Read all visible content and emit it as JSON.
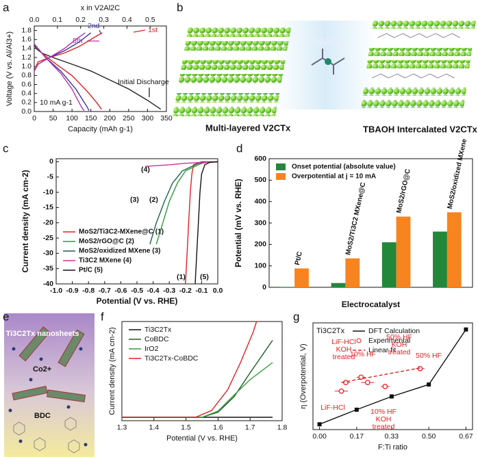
{
  "panels": {
    "labels": [
      "a",
      "b",
      "c",
      "d",
      "e",
      "f",
      "g"
    ]
  },
  "illustrations": {
    "b": {
      "center": "TBAOH",
      "left": "Multi-layered V2CTx",
      "right": "TBAOH Intercalated V2CTx"
    },
    "e": {
      "top": "Ti3C2Tx nanosheets",
      "ion": "Co2+",
      "bottom": "BDC"
    }
  },
  "chart_data": [
    {
      "type": "line",
      "x2label": "x in V2Al2C",
      "xlabel": "Capacity (mAh g-1)",
      "ylabel": "Voltage (V vs. Al/Al3+)",
      "xlim": [
        0,
        350
      ],
      "xticks": [
        0,
        50,
        100,
        150,
        200,
        250,
        300,
        350
      ],
      "x2lim": [
        0,
        0.57
      ],
      "x2ticks": [
        {
          "value": 0,
          "label": "0.0"
        },
        0.1,
        0.2,
        0.3,
        0.4,
        0.5
      ],
      "ylim": [
        0,
        1.9
      ],
      "yticks": [
        {
          "value": 0,
          "label": "0.0"
        },
        0.2,
        0.4,
        0.6,
        0.8,
        {
          "value": 1,
          "label": "1.0"
        },
        1.2,
        1.4,
        1.6,
        1.8
      ],
      "series": [
        {
          "color": "#222222",
          "x": [
            0,
            5,
            20,
            50,
            100,
            150,
            200,
            250,
            300,
            335
          ],
          "values": [
            1.5,
            1.4,
            1.3,
            1.2,
            1.05,
            0.9,
            0.7,
            0.5,
            0.25,
            0.05
          ]
        },
        {
          "color": "#e02020",
          "x": [
            0,
            20,
            50,
            100,
            140,
            165,
            178
          ],
          "values": [
            1.5,
            1.3,
            1.1,
            0.8,
            0.45,
            0.2,
            0.05
          ]
        },
        {
          "color": "#e02020",
          "x": [
            0,
            10,
            40,
            80,
            120,
            160,
            180
          ],
          "values": [
            0.9,
            1.1,
            1.2,
            1.3,
            1.45,
            1.65,
            1.75
          ]
        },
        {
          "color": "#3a3a9a",
          "x": [
            0,
            30,
            70,
            110,
            140,
            145
          ],
          "values": [
            1.5,
            1.2,
            0.9,
            0.5,
            0.1,
            0.02
          ]
        },
        {
          "color": "#3a3a9a",
          "x": [
            0,
            10,
            40,
            80,
            120,
            150
          ],
          "values": [
            0.9,
            1.05,
            1.2,
            1.35,
            1.55,
            1.75
          ]
        },
        {
          "color": "#b030b0",
          "x": [
            0,
            30,
            70,
            100,
            125,
            132
          ],
          "values": [
            1.5,
            1.2,
            0.85,
            0.5,
            0.1,
            0.02
          ]
        },
        {
          "color": "#b030b0",
          "x": [
            0,
            10,
            40,
            80,
            110,
            135
          ],
          "values": [
            0.9,
            1.05,
            1.2,
            1.4,
            1.6,
            1.75
          ]
        }
      ],
      "annotations": [
        [
          "1st"
        ],
        [
          "2nd"
        ],
        [
          "5th"
        ],
        [
          "Initial Discharge"
        ],
        [
          "10 mA g-1"
        ]
      ]
    },
    {
      "type": "line",
      "xlabel": "Potential (V vs. RHE)",
      "ylabel": "Current density (mA cm-2)",
      "xlim": [
        -1.0,
        0.0
      ],
      "xticks": [
        {
          "value": -1,
          "label": "-1.0"
        },
        -0.9,
        -0.8,
        -0.7,
        -0.6,
        -0.5,
        -0.4,
        -0.3,
        -0.2,
        -0.1,
        {
          "value": 0,
          "label": "0.0"
        }
      ],
      "ylim": [
        -40,
        1
      ],
      "yticks": [
        0,
        -5,
        -10,
        -15,
        -20,
        -25,
        -30,
        -35,
        -40
      ],
      "legend": "lower left",
      "series": [
        {
          "name": "MoS2/Ti3C2-MXene@C (1)",
          "color": "#e02020",
          "x": [
            -0.2,
            -0.19,
            -0.18,
            -0.17,
            -0.16,
            -0.15,
            -0.1,
            0
          ],
          "values": [
            -40,
            -30,
            -20,
            -10,
            -4,
            -1,
            0,
            0
          ]
        },
        {
          "name": "MoS2/rGO@C (2)",
          "color": "#2a9a3a",
          "x": [
            -0.38,
            -0.34,
            -0.3,
            -0.25,
            -0.2,
            -0.1,
            -0.05
          ],
          "values": [
            -27,
            -20,
            -13,
            -7,
            -3,
            -0.5,
            0
          ]
        },
        {
          "name": "MoS2/oxidized MXene (3)",
          "color": "#1f5f4a",
          "x": [
            -0.42,
            -0.38,
            -0.33,
            -0.28,
            -0.22,
            -0.12,
            -0.05
          ],
          "values": [
            -27,
            -20,
            -13,
            -7,
            -3,
            -0.5,
            0
          ]
        },
        {
          "name": "Ti3C2 MXene (4)",
          "color": "#d0309a",
          "x": [
            -0.45,
            -0.3,
            -0.2,
            -0.1,
            0
          ],
          "values": [
            -1.5,
            -1,
            -0.5,
            -0.2,
            0
          ]
        },
        {
          "name": "Pt/C (5)",
          "color": "#111111",
          "x": [
            -0.14,
            -0.13,
            -0.12,
            -0.11,
            -0.1,
            -0.08,
            -0.05,
            0
          ],
          "values": [
            -40,
            -30,
            -20,
            -10,
            -4,
            -1,
            -0.2,
            0
          ]
        }
      ],
      "annotations": [
        [
          "(1)"
        ],
        [
          "(5)"
        ],
        [
          "(2)"
        ],
        [
          "(3)"
        ],
        [
          "(4)"
        ]
      ]
    },
    {
      "type": "bar",
      "xlabel": "Electrocatalyst",
      "ylabel": "Potential (mV vs. RHE)",
      "categories": [
        "Pt/C",
        "MoS2/Ti3C2 MXene@C",
        "MoS2/rGO@C",
        "MoS2/oxidized MXene"
      ],
      "ylim": [
        0,
        600
      ],
      "yticks": [
        0,
        100,
        200,
        300,
        400,
        500,
        600
      ],
      "legend": "upper left",
      "series": [
        {
          "name": "Onset potential (absolute value)",
          "color": "#23873a",
          "values": [
            2,
            20,
            210,
            260
          ]
        },
        {
          "name": "Overpotential at j = 10 mA",
          "color": "#f7841f",
          "values": [
            88,
            135,
            330,
            350
          ]
        }
      ]
    },
    {
      "type": "line",
      "xlabel": "Potential (V vs. RHE)",
      "ylabel": "Current density (mA cm-2)",
      "xlim": [
        1.3,
        1.8
      ],
      "xticks": [
        1.3,
        1.4,
        1.5,
        1.6,
        1.7,
        1.8
      ],
      "ylim": [
        -1,
        28
      ],
      "legend": "upper left",
      "series": [
        {
          "name": "Ti3C2Tx",
          "color": "#111111",
          "x": [
            1.3,
            1.77
          ],
          "values": [
            0,
            0
          ]
        },
        {
          "name": "CoBDC",
          "color": "#1a5c2a",
          "x": [
            1.3,
            1.55,
            1.6,
            1.65,
            1.7,
            1.77
          ],
          "values": [
            0,
            0,
            1.5,
            6,
            13,
            22.5
          ]
        },
        {
          "name": "IrO2",
          "color": "#3a9a3a",
          "x": [
            1.3,
            1.55,
            1.6,
            1.65,
            1.7,
            1.77
          ],
          "values": [
            0,
            0,
            1.8,
            6.5,
            11,
            16
          ]
        },
        {
          "name": "Ti3C2Tx-CoBDC",
          "color": "#e02020",
          "x": [
            1.3,
            1.53,
            1.58,
            1.63,
            1.67,
            1.71,
            1.72
          ],
          "values": [
            0,
            0,
            2,
            8,
            16,
            25,
            28
          ]
        }
      ]
    },
    {
      "type": "line",
      "xlabel": "F:Ti ratio",
      "ylabel": "η (Overpotential, V)",
      "label": "Ti3C2Tx",
      "xlim": [
        -0.03,
        0.7
      ],
      "xticks": [
        {
          "value": 0,
          "label": "0.00"
        },
        0.17,
        0.33,
        {
          "value": 0.5,
          "label": "0.50"
        },
        0.67
      ],
      "ylim": [
        -0.03,
        1.58
      ],
      "legend": "upper left",
      "series": [
        {
          "name": "DFT Calculation",
          "color": "#111111",
          "style": "line-markers",
          "x": [
            0,
            0.17,
            0.33,
            0.5,
            0.67
          ],
          "values": [
            0.05,
            0.27,
            0.47,
            0.65,
            1.48
          ]
        },
        {
          "name": "Experimental",
          "color": "#e02020",
          "style": "markers",
          "x": [
            0.1,
            0.12,
            0.22,
            0.19,
            0.3,
            0.46
          ],
          "values": [
            0.55,
            0.68,
            0.68,
            0.76,
            0.62,
            0.89
          ],
          "xerr": [
            0.03,
            0.02,
            0.03,
            0.02,
            0.02,
            0.02
          ]
        },
        {
          "name": "Linear fit",
          "color": "#e02020",
          "style": "dashed",
          "x": [
            0.1,
            0.46
          ],
          "values": [
            0.68,
            0.9
          ]
        }
      ],
      "annotations": [
        [
          "LiF-HCl",
          "KOH",
          "treated"
        ],
        [
          "LiF-HCl"
        ],
        [
          "10% HF"
        ],
        [
          "50% HF",
          "KOH",
          "treated"
        ],
        [
          "50% HF"
        ],
        [
          "10% HF",
          "KOH",
          "treated"
        ]
      ]
    }
  ]
}
